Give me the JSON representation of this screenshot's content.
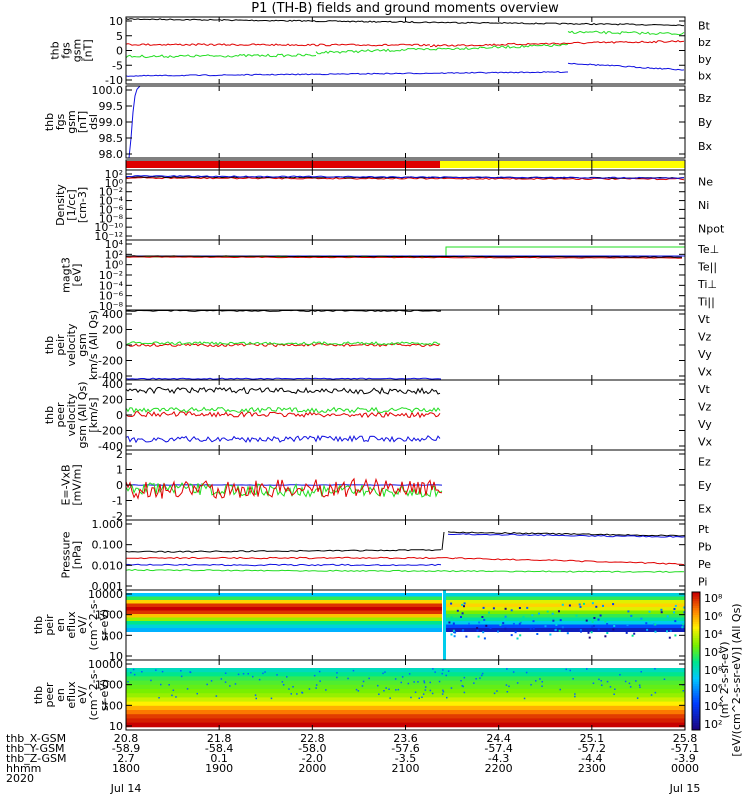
{
  "title": "P1 (TH-B) fields and ground moments overview",
  "colors": {
    "black": "#000000",
    "red": "#e00000",
    "green": "#22dd22",
    "blue": "#1010e0",
    "yellow": "#ffff00",
    "frame": "#000000"
  },
  "chart_data": {
    "type": "line",
    "title": "P1 (TH-B) fields and ground moments overview",
    "x": {
      "ticks": [
        "1800",
        "1900",
        "2000",
        "2100",
        "2200",
        "2300",
        "0000"
      ],
      "row_labels": [
        "thb_X-GSM",
        "thb_Y-GSM",
        "thb_Z-GSM",
        "hhmm",
        "2020"
      ],
      "rows": [
        [
          "20.8",
          "21.8",
          "22.8",
          "23.6",
          "24.4",
          "25.1",
          "25.8"
        ],
        [
          "-58.9",
          "-58.4",
          "-58.0",
          "-57.6",
          "-57.4",
          "-57.2",
          "-57.1"
        ],
        [
          "2.7",
          "0.1",
          "-2.0",
          "-3.5",
          "-4.3",
          "-4.4",
          "-3.9"
        ],
        [
          "1800",
          "1900",
          "2000",
          "2100",
          "2200",
          "2300",
          "0000"
        ]
      ],
      "date_start": "Jul 14",
      "date_end": "Jul 15"
    },
    "panels": [
      {
        "ylabel": [
          "thb",
          "fgs",
          "gsm",
          "[nT]"
        ],
        "ylim": [
          -10,
          10
        ],
        "ticks": [
          "10",
          "5",
          "0",
          "-5",
          "-10"
        ],
        "legend": [
          {
            "name": "Bt",
            "color": "black"
          },
          {
            "name": "bz",
            "color": "red"
          },
          {
            "name": "by",
            "color": "green"
          },
          {
            "name": "bx",
            "color": "blue"
          }
        ]
      },
      {
        "ylabel": [
          "thb",
          "fgs",
          "gsm",
          "[nT]",
          "dsl"
        ],
        "ylim": [
          97.8,
          100.0
        ],
        "ticks": [
          "100.0",
          "99.5",
          "99.0",
          "98.5",
          "98.0"
        ],
        "legend": [
          {
            "name": "Bz",
            "color": "red"
          },
          {
            "name": "By",
            "color": "green"
          },
          {
            "name": "Bx",
            "color": "blue"
          }
        ]
      },
      {
        "ylabel": [],
        "ticks": [],
        "legend": []
      },
      {
        "ylabel": [
          "Density",
          "[1/cc]",
          "[cm-3]"
        ],
        "scale": "log",
        "ticks": [
          "10²",
          "10⁰",
          "10⁻²",
          "10⁻⁴",
          "10⁻⁶",
          "10⁻⁸",
          "10⁻¹⁰",
          "10⁻¹²"
        ],
        "legend": [
          {
            "name": "Ne",
            "color": "red"
          },
          {
            "name": "Ni",
            "color": "black"
          },
          {
            "name": "Npot",
            "color": "blue"
          }
        ]
      },
      {
        "ylabel": [
          "magt3",
          "[eV]"
        ],
        "scale": "log",
        "ticks": [
          "10⁴",
          "10²",
          "10⁰",
          "10⁻²",
          "10⁻⁴",
          "10⁻⁶",
          "10⁻⁸"
        ],
        "legend": [
          {
            "name": "Te⊥",
            "color": "red"
          },
          {
            "name": "Te||",
            "color": "black"
          },
          {
            "name": "Ti⊥",
            "color": "blue"
          },
          {
            "name": "Ti||",
            "color": "green"
          }
        ]
      },
      {
        "ylabel": [
          "thb",
          "peir",
          "velocity",
          "gsm",
          "km/s (All Qs)"
        ],
        "ylim": [
          -400,
          400
        ],
        "ticks": [
          "400",
          "200",
          "0",
          "-200",
          "-400"
        ],
        "legend": [
          {
            "name": "Vt",
            "color": "black"
          },
          {
            "name": "Vz",
            "color": "red"
          },
          {
            "name": "Vy",
            "color": "green"
          },
          {
            "name": "Vx",
            "color": "blue"
          }
        ]
      },
      {
        "ylabel": [
          "thb",
          "peer",
          "velocity",
          "gsm (All Qs)",
          "[km/s]"
        ],
        "ylim": [
          -400,
          400
        ],
        "ticks": [
          "400",
          "200",
          "0",
          "-200",
          "-400"
        ],
        "legend": [
          {
            "name": "Vt",
            "color": "black"
          },
          {
            "name": "Vz",
            "color": "red"
          },
          {
            "name": "Vy",
            "color": "green"
          },
          {
            "name": "Vx",
            "color": "blue"
          }
        ]
      },
      {
        "ylabel": [
          "E=-VxB",
          "[mV/m]"
        ],
        "ylim": [
          -2,
          2
        ],
        "ticks": [
          "2",
          "1",
          "0",
          "-1",
          "-2"
        ],
        "legend": [
          {
            "name": "Ez",
            "color": "red"
          },
          {
            "name": "Ey",
            "color": "green"
          },
          {
            "name": "Ex",
            "color": "blue"
          }
        ]
      },
      {
        "ylabel": [
          "Pressure",
          "[nPa]"
        ],
        "scale": "log",
        "ticks": [
          "1.000",
          "0.100",
          "0.010",
          "0.001"
        ],
        "legend": [
          {
            "name": "Pt",
            "color": "black"
          },
          {
            "name": "Pb",
            "color": "red"
          },
          {
            "name": "Pe",
            "color": "green"
          },
          {
            "name": "Pi",
            "color": "blue"
          }
        ]
      },
      {
        "ylabel": [
          "thb",
          "peir",
          "en",
          "eflux",
          "eV/",
          "(cm^2-s-",
          "sr-eV)"
        ],
        "scale": "log",
        "ticks": [
          "10000",
          "1000",
          "100",
          "10"
        ],
        "legend": []
      },
      {
        "ylabel": [
          "thb",
          "peer",
          "en",
          "eflux",
          "eV/",
          "(cm^2-s-",
          "sr-eV)"
        ],
        "scale": "log",
        "ticks": [
          "10000",
          "1000",
          "100",
          "10"
        ],
        "legend": []
      }
    ],
    "colorbar": {
      "ticks": [
        "10⁸",
        "10⁶",
        "10⁴",
        "10²",
        "10⁸",
        "10⁶",
        "10⁴",
        "10²"
      ],
      "label": "[eV/(cm^2-s-sr-eV)] (All Qs)",
      "label2": "(m^2-s-sr-eV)"
    }
  }
}
